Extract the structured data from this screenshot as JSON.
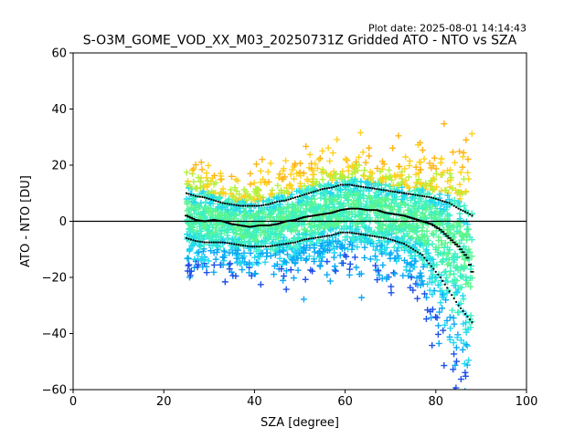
{
  "figure": {
    "plot_date": "Plot date: 2025-08-01 14:14:43"
  },
  "chart_data": {
    "type": "scatter",
    "title": "S-O3M_GOME_VOD_XX_M03_20250731Z Gridded ATO - NTO vs SZA",
    "xlabel": "SZA [degree]",
    "ylabel": "ATO - NTO [DU]",
    "xlim": [
      0,
      100
    ],
    "ylim": [
      -60,
      60
    ],
    "x_ticks": [
      "0",
      "20",
      "40",
      "60",
      "80",
      "100"
    ],
    "y_ticks": [
      "−60",
      "−40",
      "−20",
      "0",
      "20",
      "40",
      "60"
    ],
    "x_tick_values": [
      0,
      20,
      40,
      60,
      80,
      100
    ],
    "y_tick_values": [
      -60,
      -40,
      -20,
      0,
      20,
      40,
      60
    ],
    "grid": false,
    "zero_line": 0,
    "marker": "+",
    "point_colors": [
      "#5cf58c",
      "#3df0c4",
      "#22d8f0",
      "#0aa8f5",
      "#1e50e8",
      "#b4f03c",
      "#ffd21e",
      "#ffb414"
    ],
    "series": [
      {
        "name": "",
        "style": "black-dashes",
        "x": [
          25,
          27,
          29,
          31,
          33,
          35,
          37,
          39,
          41,
          43,
          45,
          47,
          49,
          51,
          53,
          55,
          57,
          59,
          61,
          63,
          65,
          67,
          69,
          71,
          73,
          75,
          77,
          79,
          81,
          83,
          85,
          87,
          88
        ],
        "y": [
          2,
          0.5,
          0,
          0.5,
          0,
          -1,
          -1.5,
          -2,
          -1.5,
          -1.5,
          -1,
          0,
          0.5,
          1.5,
          2,
          2.5,
          3,
          4,
          4.5,
          4.5,
          4,
          4,
          3,
          2.5,
          2,
          1,
          0,
          -1,
          -3,
          -6,
          -9,
          -13,
          -18
        ]
      },
      {
        "name": "",
        "style": "black-dots-upper",
        "x": [
          25,
          27,
          29,
          31,
          33,
          35,
          37,
          39,
          41,
          43,
          45,
          47,
          49,
          51,
          53,
          55,
          57,
          59,
          61,
          63,
          65,
          67,
          69,
          71,
          73,
          75,
          77,
          79,
          81,
          83,
          85,
          87,
          88
        ],
        "y": [
          10,
          9,
          8.5,
          7.5,
          6.5,
          6,
          5.5,
          5.5,
          5.5,
          6,
          7,
          7.5,
          8.5,
          9.5,
          10.5,
          11.5,
          12,
          13,
          13,
          12.5,
          12,
          11.5,
          11,
          10.5,
          10,
          9.5,
          9,
          8.5,
          7.5,
          6.5,
          4.5,
          3,
          2
        ]
      },
      {
        "name": "",
        "style": "black-dots-lower",
        "x": [
          25,
          27,
          29,
          31,
          33,
          35,
          37,
          39,
          41,
          43,
          45,
          47,
          49,
          51,
          53,
          55,
          57,
          59,
          61,
          63,
          65,
          67,
          69,
          71,
          73,
          75,
          77,
          79,
          81,
          83,
          85,
          87,
          88
        ],
        "y": [
          -6,
          -7,
          -7.5,
          -7.5,
          -7.5,
          -8,
          -8.5,
          -9,
          -9,
          -9,
          -8.5,
          -8,
          -7.5,
          -6.5,
          -6,
          -5.5,
          -5,
          -4,
          -4,
          -4.5,
          -5,
          -5.5,
          -6,
          -7,
          -8,
          -10,
          -12,
          -16,
          -20,
          -25,
          -30,
          -34,
          -36
        ]
      }
    ]
  }
}
